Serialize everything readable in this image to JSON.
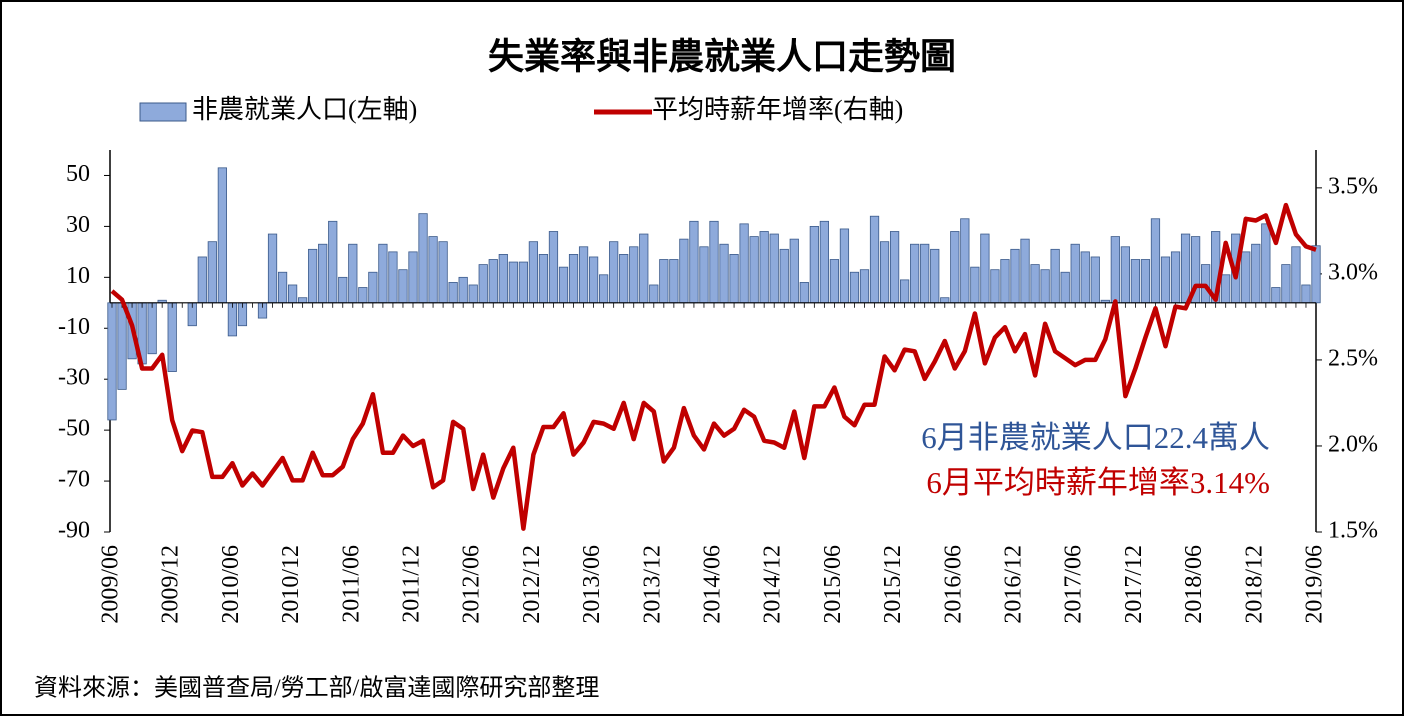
{
  "chart_data": {
    "type": "combo",
    "title": "失業率與非農就業人口走勢圖",
    "source": "資料來源：美國普查局/勞工部/啟富達國際研究部整理",
    "categories": [
      "2009/06",
      null,
      null,
      null,
      null,
      null,
      "2009/12",
      null,
      null,
      null,
      null,
      null,
      "2010/06",
      null,
      null,
      null,
      null,
      null,
      "2010/12",
      null,
      null,
      null,
      null,
      null,
      "2011/06",
      null,
      null,
      null,
      null,
      null,
      "2011/12",
      null,
      null,
      null,
      null,
      null,
      "2012/06",
      null,
      null,
      null,
      null,
      null,
      "2012/12",
      null,
      null,
      null,
      null,
      null,
      "2013/06",
      null,
      null,
      null,
      null,
      null,
      "2013/12",
      null,
      null,
      null,
      null,
      null,
      "2014/06",
      null,
      null,
      null,
      null,
      null,
      "2014/12",
      null,
      null,
      null,
      null,
      null,
      "2015/06",
      null,
      null,
      null,
      null,
      null,
      "2015/12",
      null,
      null,
      null,
      null,
      null,
      "2016/06",
      null,
      null,
      null,
      null,
      null,
      "2016/12",
      null,
      null,
      null,
      null,
      null,
      "2017/06",
      null,
      null,
      null,
      null,
      null,
      "2017/12",
      null,
      null,
      null,
      null,
      null,
      "2018/06",
      null,
      null,
      null,
      null,
      null,
      "2018/12",
      null,
      null,
      null,
      null,
      null,
      "2019/06"
    ],
    "series": [
      {
        "name": "非農就業人口(左軸)",
        "type": "bar",
        "color": "#8eaadb",
        "edge": "#3b5a8a",
        "values": [
          -46,
          -34,
          -22,
          -24,
          -20,
          1,
          -27,
          0,
          -9,
          18,
          24,
          53,
          -13,
          -9,
          0,
          -6,
          27,
          12,
          7,
          2,
          21,
          23,
          32,
          10,
          23,
          6,
          12,
          23,
          20,
          13,
          20,
          35,
          26,
          24,
          8,
          10,
          7,
          15,
          17,
          19,
          16,
          16,
          24,
          19,
          28,
          14,
          19,
          22,
          18,
          11,
          24,
          19,
          22,
          27,
          7,
          17,
          17,
          25,
          32,
          22,
          32,
          23,
          19,
          31,
          26,
          28,
          27,
          21,
          25,
          8,
          30,
          32,
          17,
          29,
          12,
          13,
          34,
          24,
          28,
          9,
          23,
          23,
          21,
          2,
          28,
          33,
          14,
          27,
          13,
          17,
          21,
          25,
          15,
          13,
          21,
          12,
          23,
          20,
          18,
          1,
          26,
          22,
          17,
          17,
          33,
          18,
          20,
          27,
          26,
          15,
          28,
          11,
          27,
          20,
          23,
          31,
          6,
          15,
          22,
          7,
          22.4
        ]
      },
      {
        "name": "平均時薪年增率(右軸)",
        "type": "line",
        "axis": "y2",
        "color": "#c00000",
        "values": [
          2.9,
          2.85,
          2.7,
          2.45,
          2.45,
          2.53,
          2.15,
          1.97,
          2.09,
          2.08,
          1.82,
          1.82,
          1.9,
          1.77,
          1.84,
          1.77,
          1.85,
          1.93,
          1.8,
          1.8,
          1.96,
          1.83,
          1.83,
          1.88,
          2.04,
          2.13,
          2.3,
          1.96,
          1.96,
          2.06,
          2.0,
          2.03,
          1.76,
          1.8,
          2.14,
          2.1,
          1.75,
          1.95,
          1.7,
          1.87,
          1.99,
          1.52,
          1.95,
          2.11,
          2.11,
          2.19,
          1.95,
          2.02,
          2.14,
          2.13,
          2.1,
          2.25,
          2.04,
          2.25,
          2.2,
          1.91,
          1.99,
          2.22,
          2.06,
          1.98,
          2.13,
          2.06,
          2.1,
          2.21,
          2.17,
          2.03,
          2.02,
          1.99,
          2.2,
          1.93,
          2.23,
          2.23,
          2.34,
          2.17,
          2.12,
          2.24,
          2.24,
          2.52,
          2.44,
          2.56,
          2.55,
          2.39,
          2.49,
          2.61,
          2.45,
          2.55,
          2.77,
          2.48,
          2.63,
          2.69,
          2.55,
          2.65,
          2.41,
          2.71,
          2.55,
          2.51,
          2.47,
          2.5,
          2.5,
          2.62,
          2.84,
          2.29,
          2.45,
          2.63,
          2.8,
          2.58,
          2.81,
          2.8,
          2.93,
          2.93,
          2.85,
          3.18,
          2.98,
          3.32,
          3.31,
          3.34,
          3.18,
          3.4,
          3.23,
          3.16,
          3.14
        ]
      }
    ],
    "ylim": [
      -90,
      60
    ],
    "yticks": [
      50,
      30,
      10,
      -10,
      -30,
      -50,
      -70,
      -90
    ],
    "y2lim": [
      1.5,
      3.72
    ],
    "y2ticks": [
      {
        "value": 3.5,
        "label": "3.5%"
      },
      {
        "value": 3.0,
        "label": "3.0%"
      },
      {
        "value": 2.5,
        "label": "2.5%"
      },
      {
        "value": 2.0,
        "label": "2.0%"
      },
      {
        "value": 1.5,
        "label": "1.5%"
      }
    ],
    "annotations": [
      {
        "text": "6月非農就業人口22.4萬人",
        "color": "#2f5597"
      },
      {
        "text": "6月平均時薪年增率3.14%",
        "color": "#c00000"
      }
    ]
  }
}
